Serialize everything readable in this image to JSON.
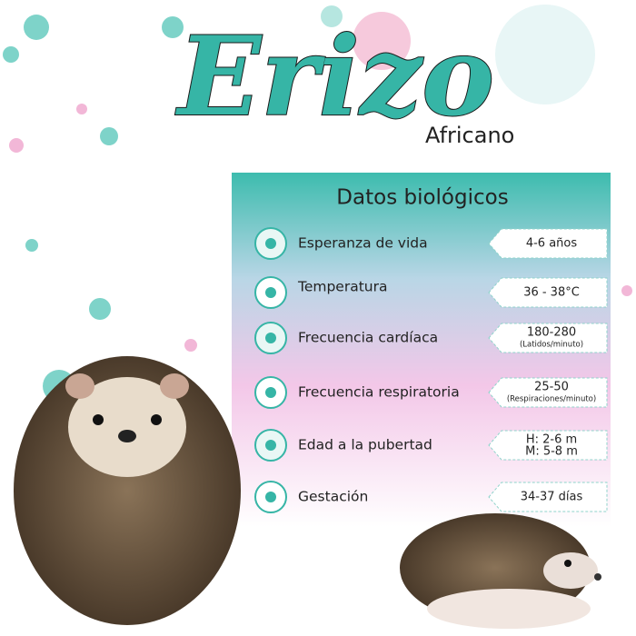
{
  "header": {
    "title": "Erizo",
    "subtitle": "Africano"
  },
  "panel": {
    "title": "Datos biológicos",
    "rows": [
      {
        "label": "Esperanza de vida",
        "value": [
          "4-6 años"
        ]
      },
      {
        "label": "Temperatura",
        "value": [
          "36 - 38°C"
        ]
      },
      {
        "label": "Frecuencia cardíaca",
        "value": [
          "180-280",
          "(Latidos/minuto)"
        ]
      },
      {
        "label": "Frecuencia respiratoria",
        "value": [
          "25-50",
          "(Respiraciones/minuto)"
        ]
      },
      {
        "label": "Edad a la pubertad",
        "value": [
          "H: 2-6 m",
          "M: 5-8 m"
        ]
      },
      {
        "label": "Gestación",
        "value": [
          "34-37 días"
        ]
      }
    ]
  }
}
